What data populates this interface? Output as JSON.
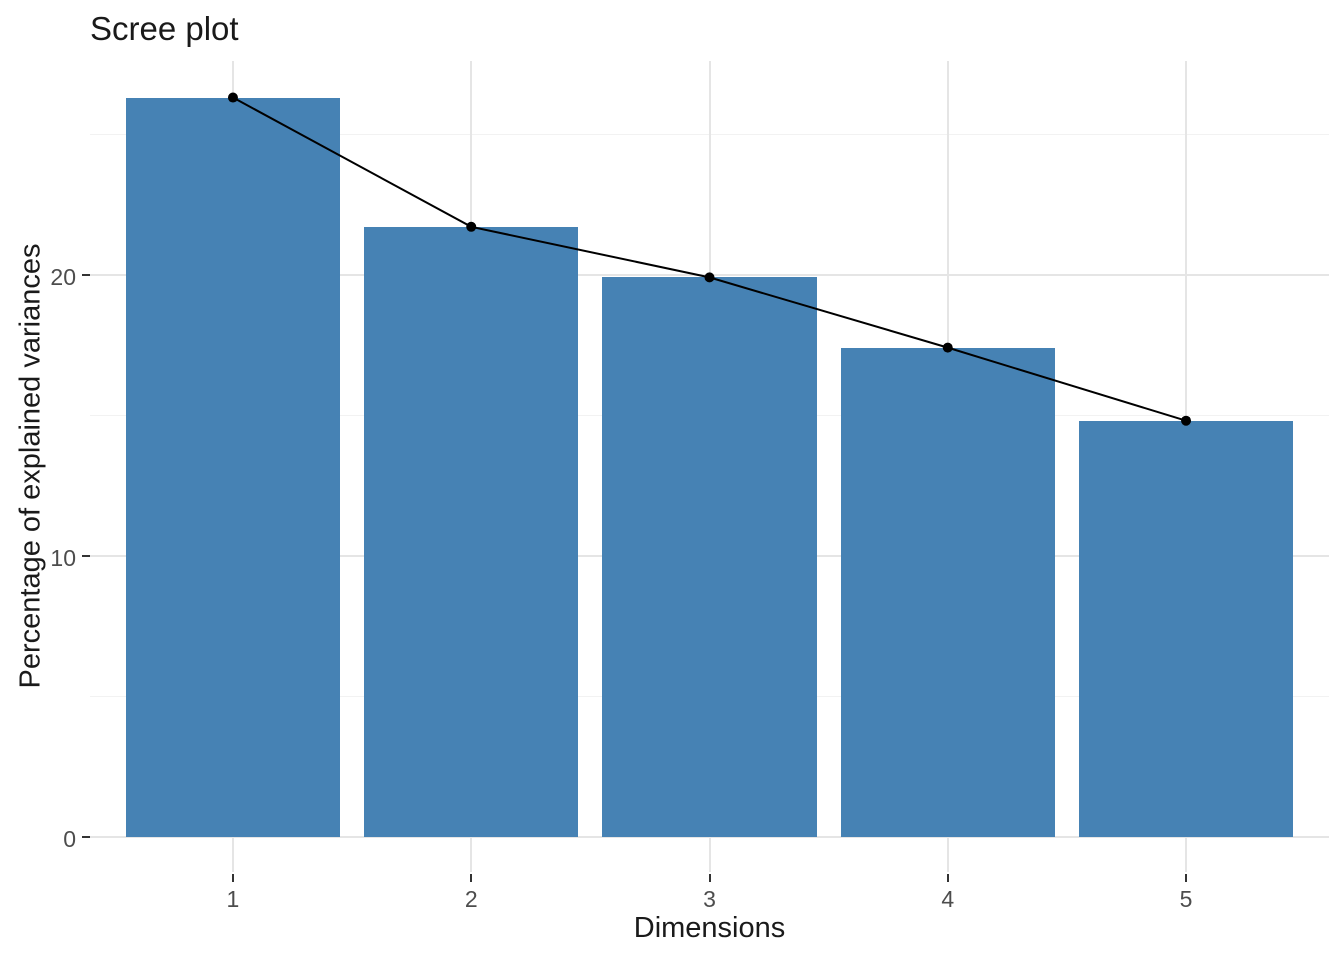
{
  "chart_data": {
    "type": "bar",
    "overlay": "line-with-points",
    "title": "Scree plot",
    "xlabel": "Dimensions",
    "ylabel": "Percentage of explained variances",
    "categories": [
      "1",
      "2",
      "3",
      "4",
      "5"
    ],
    "values": [
      26.3,
      21.7,
      19.9,
      17.4,
      14.8
    ],
    "y_major_ticks": [
      0,
      10,
      20
    ],
    "y_minor_gridlines": [
      5,
      15,
      25
    ],
    "ylim": [
      -1.26,
      27.6
    ],
    "x_padding": 0.6,
    "bar_width_units": 0.9,
    "grid": "on",
    "legend": "none",
    "colors": {
      "bar_fill": "#4682B4",
      "line": "#000000",
      "point": "#000000",
      "grid_major": "#E5E5E5",
      "grid_minor": "#F2F2F2",
      "tick_mark": "#333333",
      "tick_label": "#4D4D4D",
      "text": "#1A1A1A",
      "background": "#FFFFFF"
    }
  }
}
